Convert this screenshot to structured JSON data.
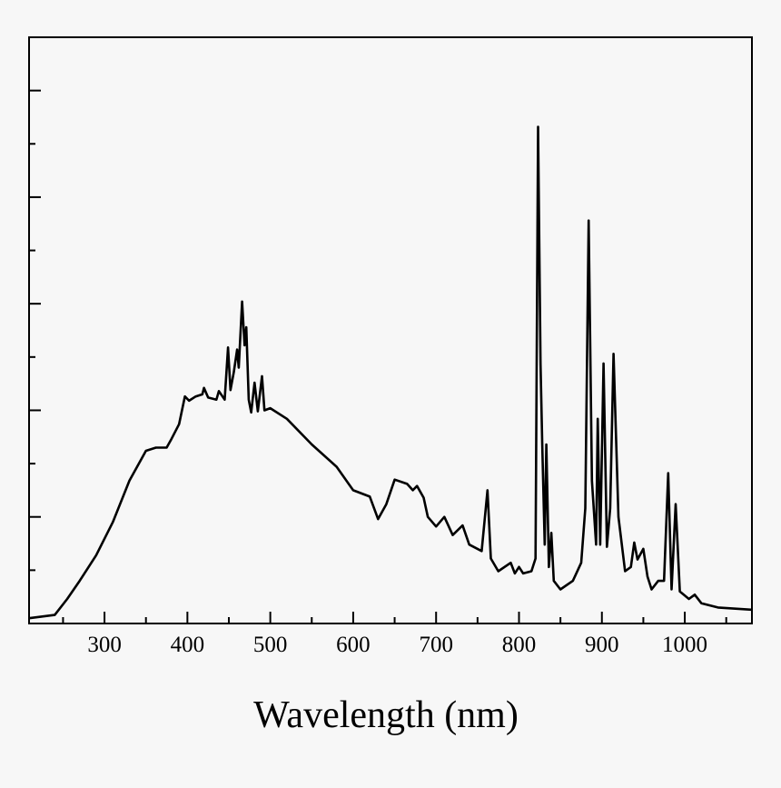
{
  "chart_data": {
    "type": "line",
    "title": "",
    "xlabel": "Wavelength (nm)",
    "ylabel": "",
    "xlim": [
      209,
      1081
    ],
    "ylim": [
      0,
      5.5
    ],
    "x_ticks": [
      300,
      400,
      500,
      600,
      700,
      800,
      900,
      1000
    ],
    "x_tick_labels": [
      "300",
      "400",
      "500",
      "600",
      "700",
      "800",
      "900",
      "1000"
    ],
    "x_minor_ticks": [
      250,
      350,
      450,
      550,
      650,
      750,
      850,
      950,
      1050
    ],
    "y_ticks": [
      1,
      2,
      3,
      4,
      5
    ],
    "y_minor_ticks": [
      0.5,
      1.5,
      2.5,
      3.5,
      4.5
    ],
    "y_tick_labels_shown": false,
    "grid": false,
    "line_color": "#000000",
    "series": [
      {
        "x": [
          210,
          240,
          255,
          270,
          290,
          310,
          330,
          350,
          362,
          375,
          380,
          390,
          397,
          402,
          410,
          418,
          420,
          425,
          435,
          438,
          445,
          449,
          452,
          456,
          460,
          462,
          466,
          469,
          471,
          474,
          477,
          481,
          485,
          490,
          493,
          500,
          520,
          550,
          580,
          600,
          620,
          630,
          640,
          650,
          665,
          672,
          677,
          685,
          690,
          700,
          710,
          720,
          732,
          740,
          755,
          762,
          766,
          775,
          790,
          795,
          800,
          805,
          815,
          820,
          823,
          826,
          828,
          831,
          833,
          836,
          839,
          842,
          850,
          865,
          875,
          880,
          884,
          888,
          893,
          895,
          898,
          902,
          906,
          910,
          914,
          920,
          928,
          935,
          939,
          943,
          950,
          955,
          960,
          968,
          975,
          980,
          984,
          989,
          994,
          1005,
          1012,
          1020,
          1040,
          1080
        ],
        "y": [
          0.05,
          0.08,
          0.23,
          0.4,
          0.64,
          0.95,
          1.34,
          1.62,
          1.65,
          1.65,
          1.72,
          1.87,
          2.13,
          2.09,
          2.13,
          2.15,
          2.21,
          2.12,
          2.1,
          2.18,
          2.1,
          2.59,
          2.19,
          2.36,
          2.57,
          2.4,
          3.02,
          2.61,
          2.78,
          2.1,
          1.98,
          2.26,
          1.99,
          2.32,
          2.0,
          2.02,
          1.92,
          1.68,
          1.47,
          1.25,
          1.19,
          0.98,
          1.12,
          1.35,
          1.31,
          1.25,
          1.29,
          1.18,
          1.0,
          0.91,
          1.0,
          0.83,
          0.92,
          0.74,
          0.68,
          1.25,
          0.61,
          0.49,
          0.57,
          0.47,
          0.53,
          0.47,
          0.49,
          0.61,
          4.66,
          2.44,
          1.68,
          0.74,
          1.68,
          0.53,
          0.85,
          0.4,
          0.32,
          0.4,
          0.57,
          1.08,
          3.78,
          1.34,
          0.74,
          1.92,
          0.74,
          2.44,
          0.72,
          1.08,
          2.53,
          1.0,
          0.49,
          0.53,
          0.76,
          0.6,
          0.7,
          0.44,
          0.32,
          0.4,
          0.4,
          1.41,
          0.32,
          1.12,
          0.3,
          0.23,
          0.27,
          0.19,
          0.15,
          0.13
        ]
      }
    ]
  }
}
